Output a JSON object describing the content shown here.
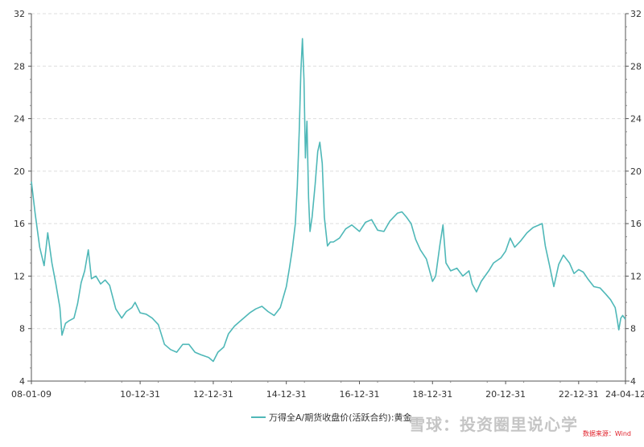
{
  "chart_data": {
    "type": "line",
    "y_ticks": [
      4,
      8,
      12,
      16,
      20,
      24,
      28,
      32
    ],
    "ylim": [
      4,
      32
    ],
    "x_tick_labels": [
      "08-01-09",
      "10-12-31",
      "12-12-31",
      "14-12-31",
      "16-12-31",
      "18-12-31",
      "20-12-31",
      "22-12-31",
      "24-04-12"
    ],
    "xlim": [
      "2008-01-09",
      "2024-04-12"
    ],
    "grid": "horizontal dashed",
    "series": [
      {
        "name": "万得全A/期货收盘价(活跃合约):黄金",
        "color": "#4fb8b8",
        "points": [
          [
            "2008-01-09",
            19.2
          ],
          [
            "2008-02-15",
            16.8
          ],
          [
            "2008-04-01",
            14.2
          ],
          [
            "2008-05-15",
            12.8
          ],
          [
            "2008-06-20",
            15.3
          ],
          [
            "2008-08-01",
            13.0
          ],
          [
            "2008-09-10",
            11.4
          ],
          [
            "2008-10-20",
            9.6
          ],
          [
            "2008-11-10",
            7.5
          ],
          [
            "2008-12-15",
            8.4
          ],
          [
            "2009-01-20",
            8.6
          ],
          [
            "2009-03-10",
            8.8
          ],
          [
            "2009-04-15",
            9.9
          ],
          [
            "2009-05-20",
            11.5
          ],
          [
            "2009-06-25",
            12.4
          ],
          [
            "2009-07-31",
            14.0
          ],
          [
            "2009-08-31",
            11.8
          ],
          [
            "2009-10-15",
            12.0
          ],
          [
            "2009-12-01",
            11.4
          ],
          [
            "2010-01-15",
            11.7
          ],
          [
            "2010-03-01",
            11.3
          ],
          [
            "2010-05-01",
            9.5
          ],
          [
            "2010-06-30",
            8.8
          ],
          [
            "2010-08-15",
            9.3
          ],
          [
            "2010-10-10",
            9.6
          ],
          [
            "2010-11-10",
            10.0
          ],
          [
            "2010-12-31",
            9.2
          ],
          [
            "2011-03-01",
            9.1
          ],
          [
            "2011-05-01",
            8.8
          ],
          [
            "2011-07-01",
            8.3
          ],
          [
            "2011-08-31",
            6.8
          ],
          [
            "2011-10-31",
            6.4
          ],
          [
            "2011-12-31",
            6.2
          ],
          [
            "2012-03-01",
            6.8
          ],
          [
            "2012-05-01",
            6.8
          ],
          [
            "2012-07-01",
            6.2
          ],
          [
            "2012-09-01",
            6.0
          ],
          [
            "2012-11-15",
            5.8
          ],
          [
            "2012-12-31",
            5.5
          ],
          [
            "2013-02-15",
            6.2
          ],
          [
            "2013-04-15",
            6.6
          ],
          [
            "2013-06-01",
            7.6
          ],
          [
            "2013-08-01",
            8.2
          ],
          [
            "2013-10-01",
            8.6
          ],
          [
            "2013-12-31",
            9.2
          ],
          [
            "2014-03-01",
            9.5
          ],
          [
            "2014-05-01",
            9.7
          ],
          [
            "2014-07-01",
            9.3
          ],
          [
            "2014-09-01",
            9.0
          ],
          [
            "2014-11-01",
            9.6
          ],
          [
            "2014-12-31",
            11.2
          ],
          [
            "2015-01-31",
            12.6
          ],
          [
            "2015-02-28",
            14.0
          ],
          [
            "2015-03-31",
            16.0
          ],
          [
            "2015-04-20",
            18.8
          ],
          [
            "2015-05-10",
            23.2
          ],
          [
            "2015-05-25",
            27.5
          ],
          [
            "2015-06-10",
            30.1
          ],
          [
            "2015-06-25",
            27.0
          ],
          [
            "2015-07-10",
            21.0
          ],
          [
            "2015-07-25",
            23.8
          ],
          [
            "2015-08-10",
            18.0
          ],
          [
            "2015-08-25",
            15.4
          ],
          [
            "2015-09-15",
            16.5
          ],
          [
            "2015-10-15",
            19.0
          ],
          [
            "2015-11-10",
            21.5
          ],
          [
            "2015-12-01",
            22.2
          ],
          [
            "2015-12-25",
            20.6
          ],
          [
            "2016-01-15",
            16.5
          ],
          [
            "2016-02-15",
            14.3
          ],
          [
            "2016-03-15",
            14.6
          ],
          [
            "2016-04-15",
            14.6
          ],
          [
            "2016-06-15",
            14.9
          ],
          [
            "2016-08-15",
            15.6
          ],
          [
            "2016-10-15",
            15.9
          ],
          [
            "2016-12-31",
            15.4
          ],
          [
            "2017-03-01",
            16.1
          ],
          [
            "2017-05-01",
            16.3
          ],
          [
            "2017-07-01",
            15.5
          ],
          [
            "2017-09-01",
            15.4
          ],
          [
            "2017-11-01",
            16.2
          ],
          [
            "2018-01-15",
            16.8
          ],
          [
            "2018-03-01",
            16.9
          ],
          [
            "2018-04-15",
            16.5
          ],
          [
            "2018-05-31",
            16.0
          ],
          [
            "2018-07-15",
            14.8
          ],
          [
            "2018-09-01",
            14.0
          ],
          [
            "2018-10-31",
            13.3
          ],
          [
            "2018-12-31",
            11.6
          ],
          [
            "2019-02-01",
            12.0
          ],
          [
            "2019-03-15",
            14.4
          ],
          [
            "2019-04-15",
            15.9
          ],
          [
            "2019-05-15",
            13.0
          ],
          [
            "2019-07-01",
            12.4
          ],
          [
            "2019-09-01",
            12.6
          ],
          [
            "2019-10-31",
            12.0
          ],
          [
            "2019-12-31",
            12.4
          ],
          [
            "2020-02-01",
            11.4
          ],
          [
            "2020-03-15",
            10.8
          ],
          [
            "2020-05-01",
            11.6
          ],
          [
            "2020-07-15",
            12.4
          ],
          [
            "2020-09-01",
            13.0
          ],
          [
            "2020-11-15",
            13.4
          ],
          [
            "2020-12-31",
            13.9
          ],
          [
            "2021-02-15",
            14.9
          ],
          [
            "2021-04-01",
            14.2
          ],
          [
            "2021-06-01",
            14.7
          ],
          [
            "2021-08-01",
            15.3
          ],
          [
            "2021-10-01",
            15.7
          ],
          [
            "2021-12-31",
            16.0
          ],
          [
            "2022-02-01",
            14.3
          ],
          [
            "2022-03-15",
            12.8
          ],
          [
            "2022-04-27",
            11.2
          ],
          [
            "2022-06-15",
            12.9
          ],
          [
            "2022-08-01",
            13.6
          ],
          [
            "2022-09-30",
            13.0
          ],
          [
            "2022-11-15",
            12.2
          ],
          [
            "2022-12-31",
            12.5
          ],
          [
            "2023-02-15",
            12.3
          ],
          [
            "2023-04-01",
            11.8
          ],
          [
            "2023-06-01",
            11.2
          ],
          [
            "2023-08-01",
            11.1
          ],
          [
            "2023-10-01",
            10.6
          ],
          [
            "2023-11-15",
            10.2
          ],
          [
            "2023-12-31",
            9.6
          ],
          [
            "2024-01-20",
            8.7
          ],
          [
            "2024-02-05",
            7.9
          ],
          [
            "2024-02-25",
            8.8
          ],
          [
            "2024-03-15",
            9.0
          ],
          [
            "2024-04-12",
            8.7
          ]
        ]
      }
    ]
  },
  "source": "数据来源：Wind",
  "watermark": "雪球：投资圈里说心学"
}
